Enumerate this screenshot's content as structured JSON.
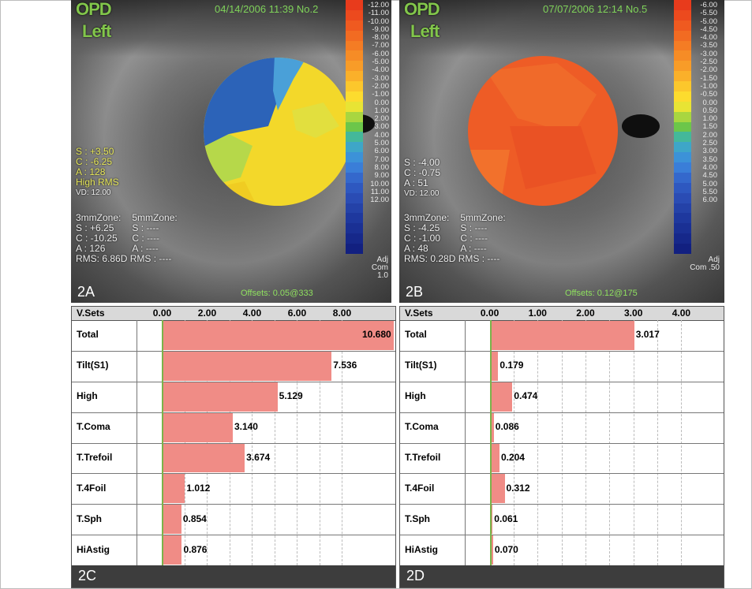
{
  "panels": {
    "a": {
      "title": "OPD",
      "eye": "Left",
      "datetime": "04/14/2006 11:39 No.2",
      "sphere_line": "S : +3.50",
      "cyl_line": "C : -6.25",
      "axis_line": "A : 128",
      "high_rms": "High RMS",
      "vd": "VD: 12.00",
      "zone3_head": "3mmZone:",
      "zone5_head": "5mmZone:",
      "z3_s": "S : +6.25",
      "z3_c": "C : -10.25",
      "z3_a": "A : 126",
      "z5_s": "S : ----",
      "z5_c": "C : ----",
      "z5_a": "A : ----",
      "rms": "RMS: 6.86D RMS : ----",
      "offsets": "Offsets: 0.05@333",
      "tag": "2A",
      "adj": "Adj",
      "com": "Com 1.0",
      "scale": [
        "-12.00",
        "-11.00",
        "-10.00",
        "-9.00",
        "-8.00",
        "-7.00",
        "-6.00",
        "-5.00",
        "-4.00",
        "-3.00",
        "-2.00",
        "-1.00",
        "0.00",
        "1.00",
        "2.00",
        "3.00",
        "4.00",
        "5.00",
        "6.00",
        "7.00",
        "8.00",
        "9.00",
        "10.00",
        "11.00",
        "12.00"
      ]
    },
    "b": {
      "title": "OPD",
      "eye": "Left",
      "datetime": "07/07/2006 12:14 No.5",
      "sphere_line": "S : -4.00",
      "cyl_line": "C : -0.75",
      "axis_line": "A : 51",
      "vd": "VD: 12.00",
      "zone3_head": "3mmZone:",
      "zone5_head": "5mmZone:",
      "z3_s": "S : -4.25",
      "z3_c": "C : -1.00",
      "z3_a": "A : 48",
      "z5_s": "S : ----",
      "z5_c": "C : ----",
      "z5_a": "A : ----",
      "rms": "RMS: 0.28D RMS : ----",
      "offsets": "Offsets: 0.12@175",
      "tag": "2B",
      "adj": "Adj",
      "com": "Com .50",
      "scale": [
        "-6.00",
        "-5.50",
        "-5.00",
        "-4.50",
        "-4.00",
        "-3.50",
        "-3.00",
        "-2.50",
        "-2.00",
        "-1.50",
        "-1.00",
        "-0.50",
        "0.00",
        "0.50",
        "1.00",
        "1.50",
        "2.00",
        "2.50",
        "3.00",
        "3.50",
        "4.00",
        "4.50",
        "5.00",
        "5.50",
        "6.00"
      ]
    }
  },
  "scale_colors": [
    "#e83b1c",
    "#ec4a1e",
    "#ef5a20",
    "#f26b22",
    "#f47c24",
    "#f68c26",
    "#f89c28",
    "#fab02a",
    "#fcc72c",
    "#fddc2e",
    "#e8e434",
    "#a8d640",
    "#6cc64a",
    "#44b89a",
    "#3ea6c8",
    "#3c92d8",
    "#3a7ed8",
    "#3468cc",
    "#2e58c0",
    "#2a4cb4",
    "#2442a8",
    "#1e389e",
    "#1a3094",
    "#16288a",
    "#122080"
  ],
  "chart_data": [
    {
      "type": "bar",
      "header": "V.Sets",
      "tag": "2C",
      "categories": [
        "Total",
        "Tilt(S1)",
        "High",
        "T.Coma",
        "T.Trefoil",
        "T.4Foil",
        "T.Sph",
        "HiAstig"
      ],
      "values": [
        10.68,
        7.536,
        5.129,
        3.14,
        3.674,
        1.012,
        0.854,
        0.876
      ],
      "value_labels": [
        "10.680",
        "7.536",
        "5.129",
        "3.140",
        "3.674",
        "1.012",
        "0.854",
        "0.876"
      ],
      "ticks": [
        "0.00",
        "2.00",
        "4.00",
        "6.00",
        "8.00"
      ],
      "tick_values": [
        0,
        2,
        4,
        6,
        8
      ],
      "xlim": [
        -1.14,
        10.3
      ],
      "grid": true
    },
    {
      "type": "bar",
      "header": "V.Sets",
      "tag": "2D",
      "categories": [
        "Total",
        "Tilt(S1)",
        "High",
        "T.Coma",
        "T.Trefoil",
        "T.4Foil",
        "T.Sph",
        "HiAstig"
      ],
      "values": [
        3.017,
        0.179,
        0.474,
        0.086,
        0.204,
        0.312,
        0.061,
        0.07
      ],
      "value_labels": [
        "3.017",
        "0.179",
        "0.474",
        "0.086",
        "0.204",
        "0.312",
        "0.061",
        "0.070"
      ],
      "ticks": [
        "0.00",
        "1.00",
        "2.00",
        "3.00",
        "4.00"
      ],
      "tick_values": [
        0,
        1,
        2,
        3,
        4
      ],
      "xlim": [
        -0.52,
        4.85
      ],
      "grid": true
    }
  ]
}
